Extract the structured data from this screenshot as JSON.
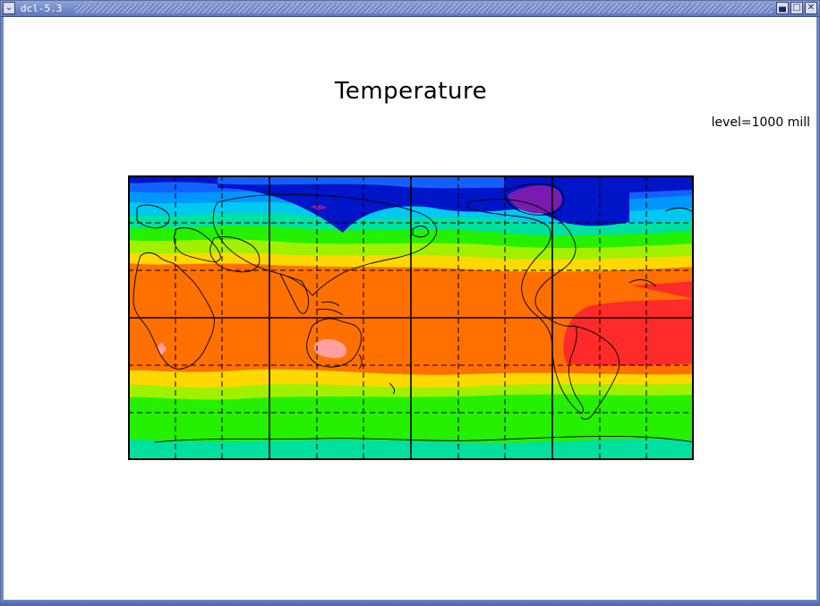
{
  "window": {
    "title": "dcl-5.3",
    "menu_icon": "chevron-down-icon",
    "controls": [
      "minimize-icon",
      "maximize-icon",
      "close-icon"
    ]
  },
  "plot": {
    "title": "Temperature",
    "level_label": "level=1000 mill"
  },
  "map": {
    "projection": "cylindrical equidistant",
    "lon_range": [
      -30,
      330
    ],
    "lat_range": [
      -90,
      90
    ],
    "solid_grid_lon_every": 90,
    "dashed_grid_lon_every": 30,
    "solid_grid_lat": [
      0
    ],
    "dashed_grid_lat": [
      -60,
      -30,
      30,
      60
    ],
    "colors": {
      "level_0_purple": "#7a1ab0",
      "level_1_navy": "#0014c8",
      "level_2_blue": "#1460ff",
      "level_3_cyan_blue": "#0096ff",
      "level_4_cyan": "#00c8f0",
      "level_5_teal": "#00e0a0",
      "level_6_green": "#24f000",
      "level_7_yellow_green": "#a0f000",
      "level_8_yellow": "#ffd800",
      "level_9_orange": "#ff7000",
      "level_10_red": "#ff2a2a",
      "level_11_pink": "#ffa0a0",
      "coastline": "#000000",
      "frame": "#000000"
    }
  }
}
